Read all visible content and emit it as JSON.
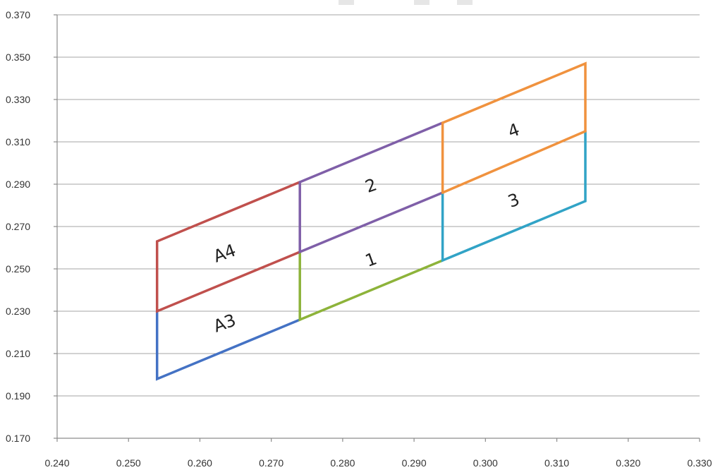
{
  "chart_data": {
    "type": "line",
    "title": "",
    "xlabel": "",
    "ylabel": "",
    "xlim": [
      0.24,
      0.33
    ],
    "ylim": [
      0.17,
      0.37
    ],
    "grid": "horizontal",
    "xticks": [
      "0.240",
      "0.250",
      "0.260",
      "0.270",
      "0.280",
      "0.290",
      "0.300",
      "0.310",
      "0.320",
      "0.330"
    ],
    "yticks": [
      "0.170",
      "0.190",
      "0.210",
      "0.230",
      "0.250",
      "0.270",
      "0.290",
      "0.310",
      "0.330",
      "0.350",
      "0.370"
    ],
    "series": [
      {
        "key": "a3",
        "color": "#4472c4",
        "x": [
          0.254,
          0.254,
          0.274
        ],
        "y": [
          0.23,
          0.198,
          0.226
        ]
      },
      {
        "key": "a4",
        "color": "#c0504d",
        "x": [
          0.274,
          0.254,
          0.254,
          0.274
        ],
        "y": [
          0.291,
          0.263,
          0.23,
          0.258
        ]
      },
      {
        "key": "r1",
        "color": "#8db33a",
        "x": [
          0.274,
          0.274,
          0.294
        ],
        "y": [
          0.258,
          0.226,
          0.254
        ]
      },
      {
        "key": "r2",
        "color": "#7f5fa8",
        "x": [
          0.294,
          0.274,
          0.274,
          0.294
        ],
        "y": [
          0.319,
          0.291,
          0.258,
          0.286
        ]
      },
      {
        "key": "r3",
        "color": "#31a3c6",
        "x": [
          0.294,
          0.294,
          0.314,
          0.314
        ],
        "y": [
          0.286,
          0.254,
          0.282,
          0.315
        ]
      },
      {
        "key": "r4",
        "color": "#f0923e",
        "x": [
          0.294,
          0.294,
          0.314,
          0.314,
          0.294
        ],
        "y": [
          0.286,
          0.319,
          0.347,
          0.315,
          0.286
        ]
      }
    ],
    "annotations": [
      {
        "text": "A4",
        "x": 0.2635,
        "y": 0.257,
        "rotate": -20
      },
      {
        "text": "A3",
        "x": 0.2635,
        "y": 0.224,
        "rotate": -20
      },
      {
        "text": "2",
        "x": 0.284,
        "y": 0.289,
        "rotate": -20
      },
      {
        "text": "1",
        "x": 0.284,
        "y": 0.254,
        "rotate": -20
      },
      {
        "text": "4",
        "x": 0.304,
        "y": 0.315,
        "rotate": -20
      },
      {
        "text": "3",
        "x": 0.304,
        "y": 0.282,
        "rotate": -20
      }
    ]
  }
}
